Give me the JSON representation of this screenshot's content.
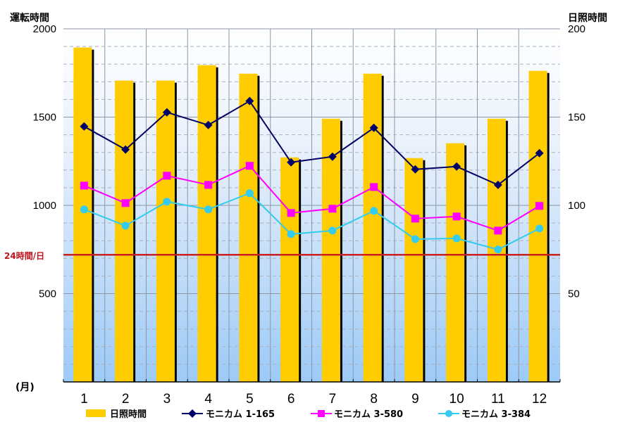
{
  "chart_data": {
    "type": "bar+line",
    "title": "",
    "xlabel": "(月)",
    "ylabel_left": "運転時間",
    "ylabel_right": "日照時間",
    "categories": [
      "1",
      "2",
      "3",
      "4",
      "5",
      "6",
      "7",
      "8",
      "9",
      "10",
      "11",
      "12"
    ],
    "ylim_left": [
      0,
      2000
    ],
    "ylim_right": [
      0,
      200
    ],
    "yticks_left": [
      "500",
      "1000",
      "1500",
      "2000"
    ],
    "yticks_right": [
      "50",
      "100",
      "150",
      "200"
    ],
    "grid": true,
    "reference_line": {
      "label": "24時間/日",
      "value": 720,
      "axis": "left",
      "color": "#cc1f1f"
    },
    "bars": {
      "name": "日照時間",
      "axis": "right",
      "color": "#ffcc00",
      "values": [
        189.4,
        170.7,
        170.7,
        179.4,
        174.6,
        127.2,
        149.1,
        174.6,
        126.8,
        135.2,
        149.1,
        176.2
      ]
    },
    "series": [
      {
        "name": "モニカム 1-165",
        "axis": "left",
        "marker": "diamond",
        "color": "#000066",
        "values": [
          1447,
          1316,
          1527,
          1455,
          1591,
          1244,
          1276,
          1439,
          1204,
          1220,
          1116,
          1296
        ]
      },
      {
        "name": "モニカム 3-580",
        "axis": "left",
        "marker": "square",
        "color": "#ff00ff",
        "values": [
          1112,
          1013,
          1168,
          1116,
          1224,
          957,
          981,
          1104,
          925,
          937,
          857,
          997
        ]
      },
      {
        "name": "モニカム 3-384",
        "axis": "left",
        "marker": "circle",
        "color": "#33ccee",
        "values": [
          977,
          885,
          1021,
          977,
          1069,
          837,
          857,
          969,
          809,
          813,
          750,
          869
        ]
      }
    ],
    "legend_position": "bottom"
  }
}
